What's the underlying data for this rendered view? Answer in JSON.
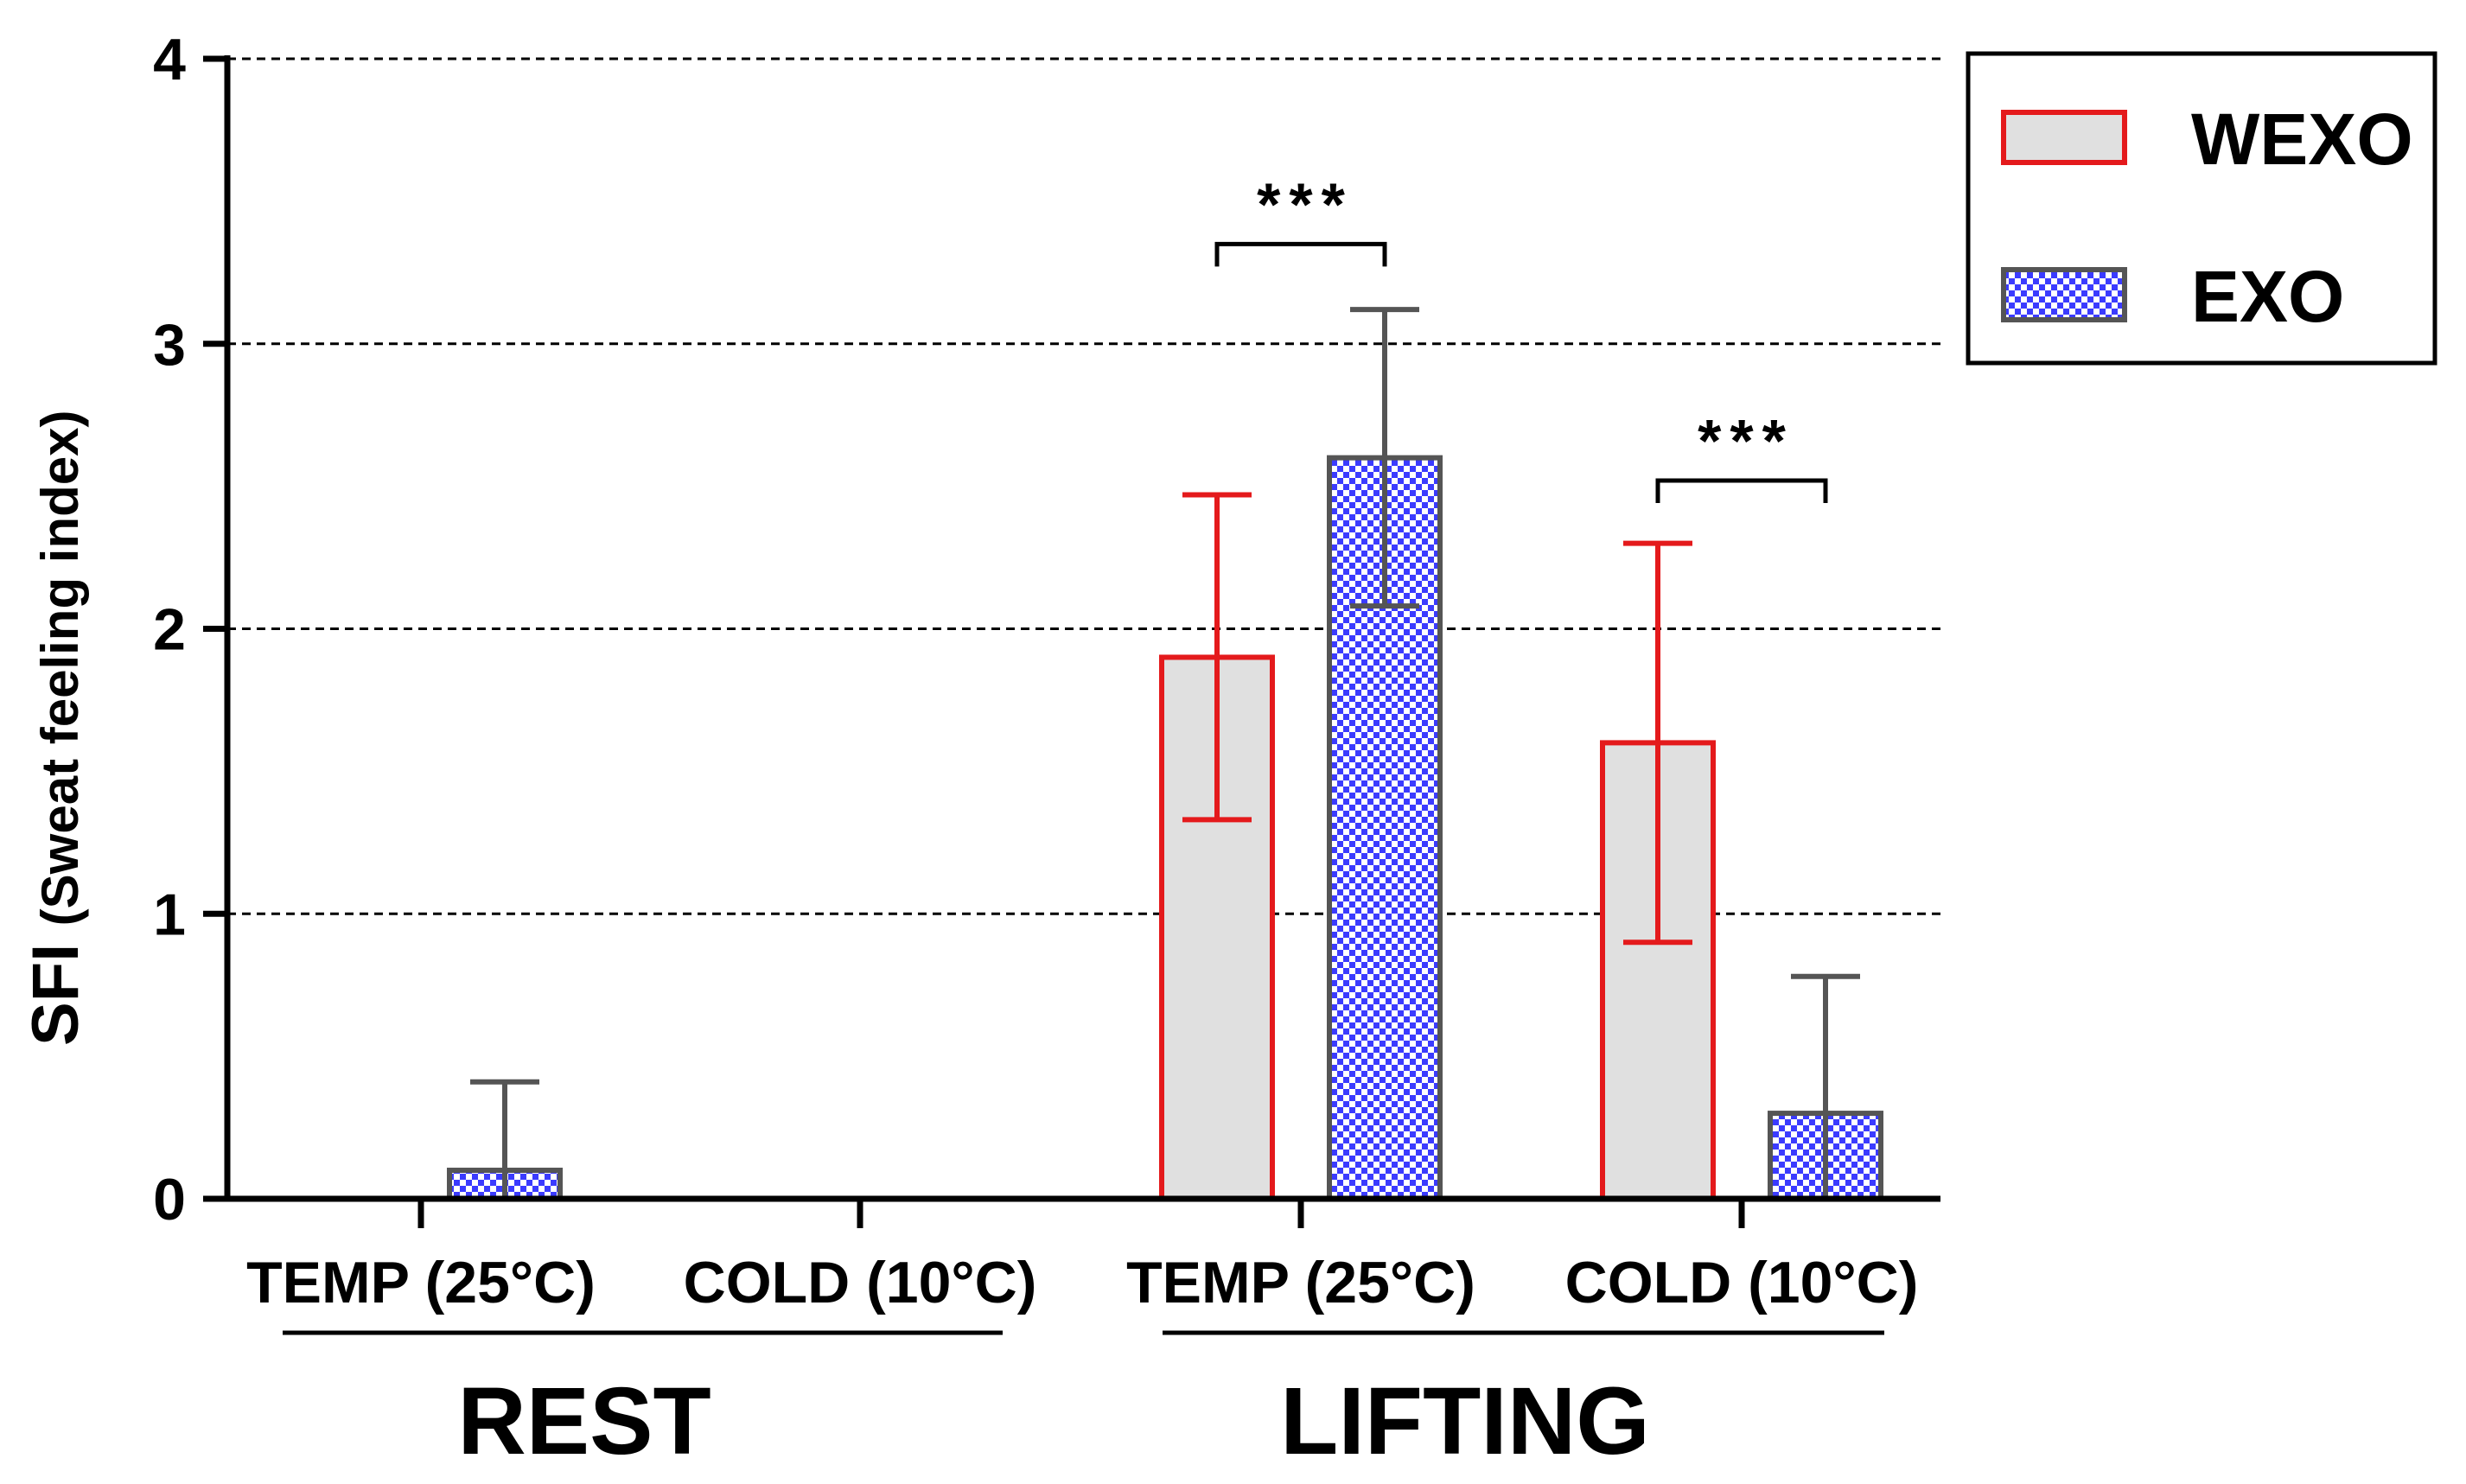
{
  "chart_data": {
    "type": "bar",
    "title": "",
    "ylabel_main": "SFI",
    "ylabel_sub": "(Sweat feeling index)",
    "ylim": [
      0,
      4
    ],
    "yticks": [
      "0",
      "1",
      "2",
      "3",
      "4"
    ],
    "grid": "horizontal dashed",
    "groups": [
      {
        "label": "REST",
        "categories": [
          "TEMP (25°C)",
          "COLD (10°C)"
        ]
      },
      {
        "label": "LIFTING",
        "categories": [
          "TEMP (25°C)",
          "COLD (10°C)"
        ]
      }
    ],
    "categories": [
      "REST TEMP (25°C)",
      "REST COLD (10°C)",
      "LIFTING TEMP (25°C)",
      "LIFTING COLD (10°C)"
    ],
    "series": [
      {
        "name": "WEXO",
        "values": [
          0,
          0,
          1.9,
          1.6
        ],
        "errors": [
          0,
          0,
          0.57,
          0.7
        ],
        "color": "#e41a1c",
        "fill": "#e0e0e0"
      },
      {
        "name": "EXO",
        "values": [
          0.1,
          0,
          2.6,
          0.3
        ],
        "errors": [
          0.31,
          0,
          0.52,
          0.48
        ],
        "color": "#555555",
        "fill": "#3b3bff"
      }
    ],
    "significance": [
      {
        "category_index": 2,
        "label": "***",
        "y": 3.35
      },
      {
        "category_index": 3,
        "label": "***",
        "y": 2.52
      }
    ],
    "legend": {
      "position": "top-right",
      "entries": [
        "WEXO",
        "EXO"
      ]
    }
  }
}
